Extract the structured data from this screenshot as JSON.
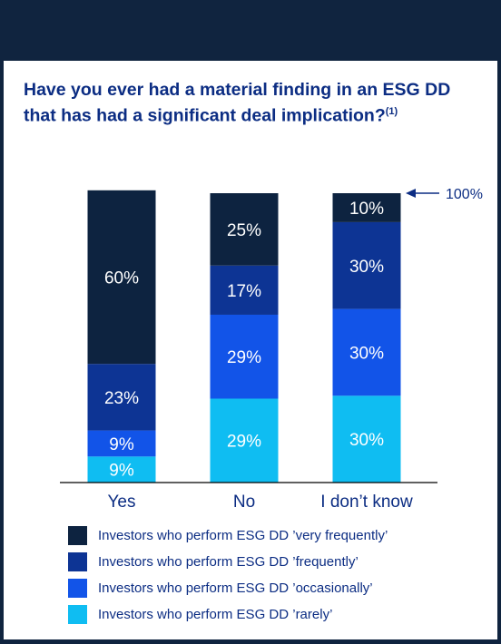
{
  "chart_data": {
    "type": "bar",
    "stacked": true,
    "title": "Have you ever had a material finding in an ESG DD that has had a significant deal implication?",
    "title_note": "(1)",
    "categories": [
      "Yes",
      "No",
      "I don’t know"
    ],
    "series": [
      {
        "name": "Investors who perform ESG DD ’rarely’",
        "color": "#0fbdf2",
        "values": [
          9,
          29,
          30
        ]
      },
      {
        "name": "Investors who perform ESG DD ’occasionally’",
        "color": "#1254e8",
        "values": [
          9,
          29,
          30
        ]
      },
      {
        "name": "Investors who perform ESG DD ’frequently’",
        "color": "#0d3494",
        "values": [
          23,
          17,
          30
        ]
      },
      {
        "name": "Investors who perform ESG DD ’very frequently’",
        "color": "#0d2340",
        "values": [
          60,
          25,
          10
        ]
      }
    ],
    "ylim": [
      0,
      100
    ],
    "total_annotation": "100%",
    "grid": false,
    "legend": "bottom"
  },
  "legend_order": [
    3,
    2,
    1,
    0
  ],
  "colors": {
    "background": "#10243f",
    "text": "#0c2d83",
    "label": "#ffffff"
  }
}
